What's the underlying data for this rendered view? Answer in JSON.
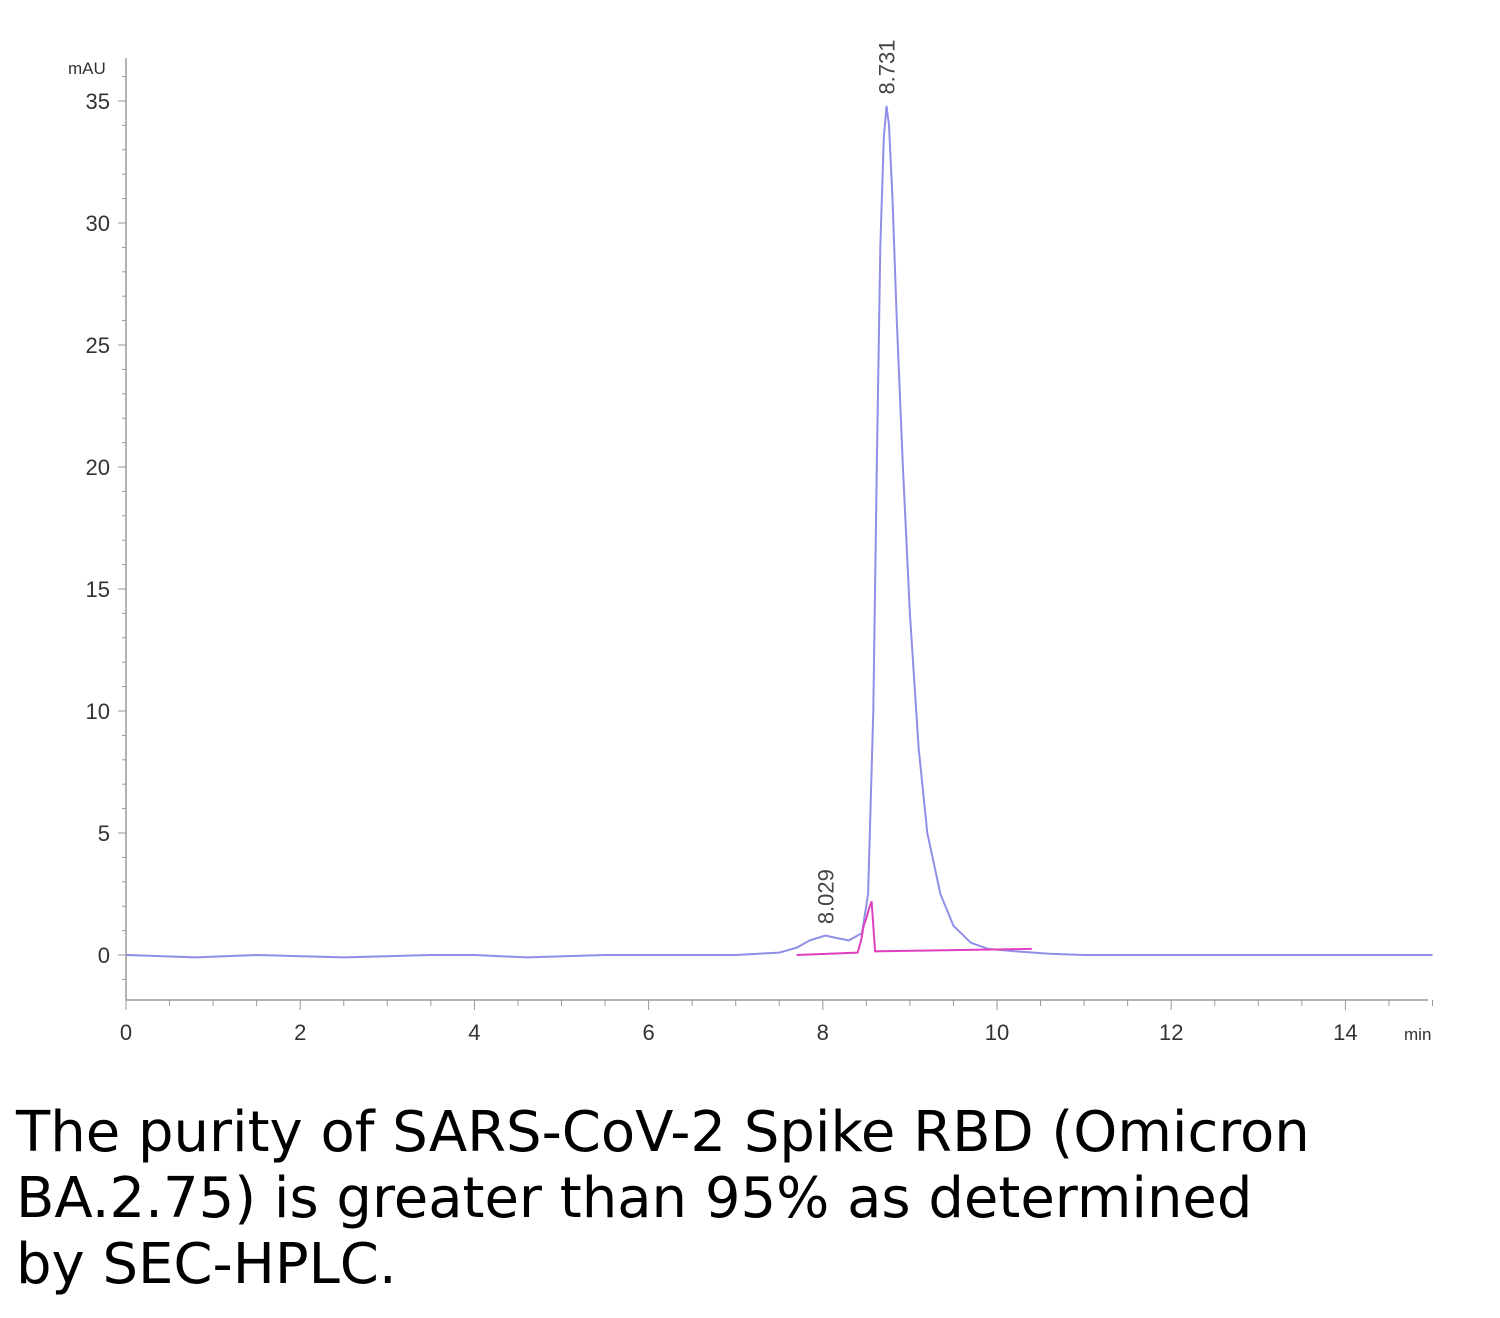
{
  "chart_data": {
    "type": "line",
    "title": "",
    "xlabel": "min",
    "ylabel": "mAU",
    "xlim": [
      0,
      15
    ],
    "ylim": [
      -3,
      37
    ],
    "x_ticks": [
      0,
      2,
      4,
      6,
      8,
      10,
      12,
      14
    ],
    "x_tick_labels": [
      "0",
      "2",
      "4",
      "6",
      "8",
      "10",
      "12",
      "14"
    ],
    "y_ticks": [
      0,
      5,
      10,
      15,
      20,
      25,
      30,
      35
    ],
    "y_tick_labels": [
      "0",
      "5",
      "10",
      "15",
      "20",
      "25",
      "30",
      "35"
    ],
    "grid": false,
    "series": [
      {
        "color": "#8f8fe6",
        "x": [
          0,
          0.8,
          1.5,
          2.5,
          3.5,
          4.0,
          4.6,
          5.5,
          6.5,
          7.0,
          7.5,
          7.7,
          7.85,
          8.03,
          8.15,
          8.3,
          8.45,
          8.52,
          8.58,
          8.62,
          8.66,
          8.7,
          8.731,
          8.76,
          8.8,
          8.85,
          8.92,
          9.0,
          9.1,
          9.2,
          9.35,
          9.5,
          9.7,
          9.9,
          10.2,
          10.6,
          11.0,
          12.0,
          13.0,
          14.0,
          15.0
        ],
        "y": [
          0,
          -0.1,
          0,
          -0.1,
          0,
          0,
          -0.1,
          0,
          0,
          0,
          0.1,
          0.3,
          0.6,
          0.8,
          0.7,
          0.6,
          0.9,
          2.5,
          10,
          20,
          29,
          33.5,
          34.8,
          34,
          31,
          26,
          20,
          14,
          8.5,
          5,
          2.5,
          1.2,
          0.5,
          0.25,
          0.15,
          0.05,
          0,
          0,
          0,
          0,
          0
        ]
      },
      {
        "color": "#e040c0",
        "x": [
          7.7,
          8.4,
          8.44,
          8.47,
          8.5,
          8.53,
          8.56,
          8.6,
          9.5,
          10.4
        ],
        "y": [
          0.0,
          0.1,
          0.6,
          1.2,
          1.5,
          1.9,
          2.2,
          0.15,
          0.2,
          0.25
        ]
      }
    ],
    "annotations": [
      {
        "text": "8.029",
        "x": 8.029,
        "y": 1.1
      },
      {
        "text": "8.731",
        "x": 8.731,
        "y": 35.1
      }
    ]
  },
  "caption": "The purity of SARS-CoV-2 Spike RBD (Omicron\nBA.2.75) is greater than 95% as determined\nby SEC-HPLC."
}
